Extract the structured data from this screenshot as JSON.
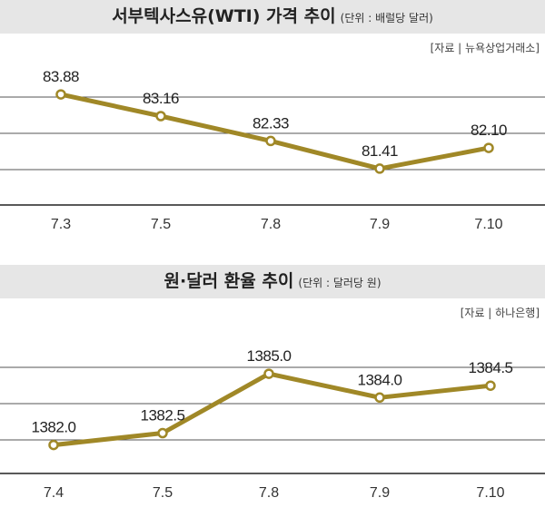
{
  "charts": {
    "oil": {
      "title": "서부텍사스유(WTI) 가격 추이",
      "unit": "(단위 : 배럴당 달러)",
      "source": "[자료 | 뉴욕상업거래소]"
    },
    "fx": {
      "title": "원·달러 환율 추이",
      "unit": "(단위 : 달러당 원)",
      "source": "[자료 | 하나은행]"
    }
  },
  "chart_data": [
    {
      "type": "line",
      "title": "서부텍사스유(WTI) 가격 추이",
      "unit": "(단위 : 배럴당 달러)",
      "source": "[자료 | 뉴욕상업거래소]",
      "categories": [
        "7.3",
        "7.5",
        "7.8",
        "7.9",
        "7.10"
      ],
      "values": [
        83.88,
        83.16,
        82.33,
        81.41,
        82.1
      ],
      "labels": [
        "83.88",
        "83.16",
        "82.33",
        "81.41",
        "82.10"
      ],
      "ylim": [
        80.2,
        85.0
      ],
      "series_color": "#a08827",
      "grid": true
    },
    {
      "type": "line",
      "title": "원·달러 환율 추이",
      "unit": "(단위 : 달러당 원)",
      "source": "[자료 | 하나은행]",
      "categories": [
        "7.4",
        "7.5",
        "7.8",
        "7.9",
        "7.10"
      ],
      "values": [
        1382.0,
        1382.5,
        1385.0,
        1384.0,
        1384.5
      ],
      "labels": [
        "1382.0",
        "1382.5",
        "1385.0",
        "1384.0",
        "1384.5"
      ],
      "ylim": [
        1380.8,
        1386.8
      ],
      "series_color": "#a08827",
      "grid": true
    }
  ]
}
